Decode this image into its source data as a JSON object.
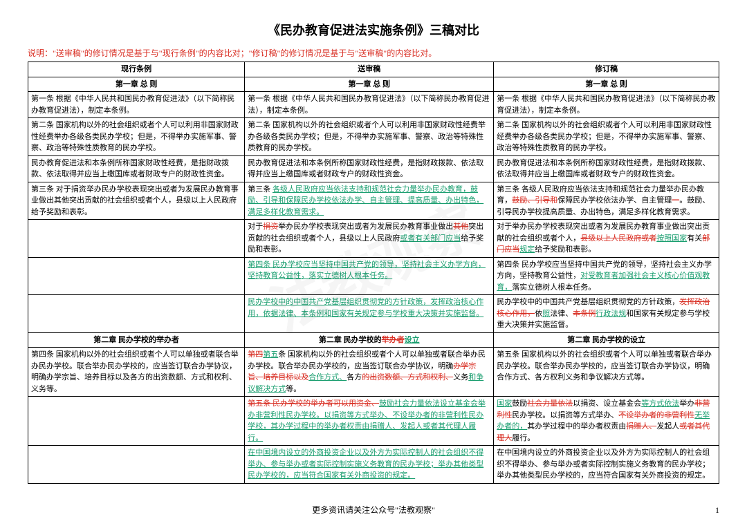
{
  "title": "《民办教育促进法实施条例》三稿对比",
  "note": "说明：\"送审稿\"的修订情况是基于与\"现行条例\"的内容比对；\"修订稿\"的修订情况是基于与\"送审稿\"的内容比对。",
  "headers": {
    "col1": "现行条例",
    "col2": "送审稿",
    "col3": "修订稿"
  },
  "chapter1": {
    "col1": "第一章 总 则",
    "col2": "第一章 总 则",
    "col3": "第一章 总 则"
  },
  "r1": {
    "c1": "第一条 根据《中华人民共和国民办教育促进法》（以下简称民办教育促进法），制定本条例。",
    "c2": "第一条 根据《中华人民共和国民办教育促进法》（以下简称民办教育促进法），制定本条例。",
    "c3": "第一条 根据《中华人民共和国民办教育促进法》（以下简称民办教育促进法），制定本条例。"
  },
  "r2": {
    "c1": "第二条 国家机构以外的社会组织或者个人可以利用非国家财政性经费举办各级各类民办学校；但是，不得举办实施军事、警察、政治等特殊性质教育的民办学校。",
    "c2": "第二条 国家机构以外的社会组织或者个人可以利用非国家财政性经费举办各级各类民办学校；但是，不得举办实施军事、警察、政治等特殊性质教育的民办学校。",
    "c3": "第二条 国家机构以外的社会组织或者个人可以利用非国家财政性经费举办各级各类民办学校；但是，不得举办实施军事、警察、政治等特殊性质教育的民办学校。"
  },
  "r3": {
    "c1": "民办教育促进法和本条例所称国家财政性经费，是指财政拨款、依法取得并应当上缴国库或者财政专户的财政性资金。",
    "c2": "民办教育促进法和本条例所称国家财政性经费，是指财政拨款、依法取得并应当上缴国库或者财政专户的财政性资金。",
    "c3": "民办教育促进法和本条例所称国家财政性经费，是指财政拨款、依法取得并应当上缴国库或者财政专户的财政性资金。"
  },
  "r4": {
    "c1": "第三条 对于捐资举办民办学校表现突出或者为发展民办教育事业做出其他突出贡献的社会组织或者个人，县级以上人民政府给予奖励和表彰。",
    "c2_p1": "第三条 ",
    "c2_add1": "各级人民政府应当依法支持和规范社会力量举办民办教育，鼓励、引导和保障民办学校依法办学、自主管理、提高质量、办出特色，满足多样化教育需求。",
    "c3_p1": "第三条 各级人民政府应当依法支持和规范社会力量举办民办教育，",
    "c3_del1": "鼓励、引导和",
    "c3_p2": "保障民办学校依法办学、自主管理",
    "c3_del2": "一",
    "c3_p3": "。鼓励、引导民办学校提高质量、办出特色，满足多样化教育需求。"
  },
  "r5": {
    "c2_p1": "对于",
    "c2_del1": "捐资",
    "c2_p2": "举办民办学校表现突出或者为发展民办教育事业做出",
    "c2_del2": "其他",
    "c2_p3": "突出贡献的社会组织或者个人，县级以上人民政府",
    "c2_add1": "或者有关部门应当",
    "c2_p4": "给予奖励和表彰。",
    "c3_p1": "对于举办民办学校表现突出或者为发展民办教育事业做出突出贡献的社会组织或者个人，",
    "c3_del1": "县级以上人民政府或者",
    "c3_add1": "按照国家",
    "c3_p2": "有关",
    "c3_del2": "部门应当",
    "c3_add2": "规定",
    "c3_p3": "给予奖励和表彰。"
  },
  "r6": {
    "c2_add1": "第四条 民办学校应当坚持中国共产党的领导，坚持社会主义办学方向，坚持教育公益性，落实立德树人根本任务。",
    "c3_p1": "第四条 民办学校应当坚持中国共产党的领导，坚持社会主义办学方向，坚持教育公益性，",
    "c3_add1": "对受教育者加强社会主义核心价值观教育，",
    "c3_p2": "落实立德树人根本任务。"
  },
  "r7": {
    "c2_add1": "民办学校中的中国共产党基层组织贯彻党的方针政策，发挥政治核心作用，依据法律、本条例和国家有关规定参与学校重大决策并实施监督。",
    "c3_p1": "民办学校中的中国共产党基层组织贯彻党的方针政策，",
    "c3_del1": "发挥政治核心作用，",
    "c3_p2": "依",
    "c3_add1": "照",
    "c3_p3": "法律、",
    "c3_del2": "本条例",
    "c3_add2": "行政法规",
    "c3_p4": "和国家有关规定参与学校重大决策并实施监督。"
  },
  "chapter2": {
    "col1": "第二章 民办学校的举办者",
    "col2_p1": "第二章 民办学校的",
    "col2_del": "举办者",
    "col2_add": "设立",
    "col3": "第二章 民办学校的设立"
  },
  "r8": {
    "c1": "第四条 国家机构以外的社会组织或者个人可以单独或者联合举办民办学校。联合举办民办学校的，应当签订联合办学协议，明确办学宗旨、培养目标以及各方的出资数额、方式和权利、义务等。",
    "c2_del1": "第四",
    "c2_add1": "第五",
    "c2_p1": "条 国家机构以外的社会组织或者个人可以单独或者联合举办民办学校。联合举办民办学校的，应当签订联合办学协议，明确",
    "c2_del2": "办学宗旨、培养目标以及",
    "c2_add2": "合作方式、",
    "c2_p2": "各方",
    "c2_del3": "的出资数额、方式和权利、",
    "c2_p3": "义务",
    "c2_add3": "和争议解决方式",
    "c2_p4": "等。",
    "c3": "第五条 国家机构以外的社会组织或者个人可以单独或者联合举办民办学校。联合举办民办学校的，应当签订联合办学协议，明确合作方式、各方权利义务和争议解决方式等。"
  },
  "r9": {
    "c2_del1": "第五条 民办学校的举办者可以用资金、",
    "c2_add1": "鼓励社会力量依法设立基金会举办非营利性民办学校。以捐资等方式举办、不设举办者的非营利性民办学校，其办学过程中的举办者权责由捐赠人、发起人或者其代理人履行。",
    "c3_add1": "国家",
    "c3_p1": "鼓励",
    "c3_del1": "社会力量依法",
    "c3_p2": "以捐资、设立基金会",
    "c3_add2": "等方式依法",
    "c3_p3": "举办",
    "c3_del2": "非营利性",
    "c3_p4": "民办学校。以捐资等方式举办、",
    "c3_del3": "不设举办者的非营利性",
    "c3_add3": "无举办者的，",
    "c3_p5": "其办学过程中的举办者权责由",
    "c3_del4": "捐赠人、",
    "c3_p6": "发起人",
    "c3_del5": "或者其代理人",
    "c3_p7": "履行。"
  },
  "r10": {
    "c2_add1": "在中国境内设立的外商投资企业以及外方为实际控制人的社会组织不得举办、参与举办或者实际控制实施义务教育的民办学校；举办其他类型民办学校的，应当符合国家有关外商投资的规定。",
    "c3": "在中国境内设立的外商投资企业以及外方为实际控制人的社会组织不得举办、参与举办或者实际控制实施义务教育的民办学校；举办其他类型民办学校的，应当符合国家有关外商投资的规定。"
  },
  "footer": "更多资讯请关注公众号\"法教观察\"",
  "pagenum": "1",
  "watermark": "法教观察"
}
